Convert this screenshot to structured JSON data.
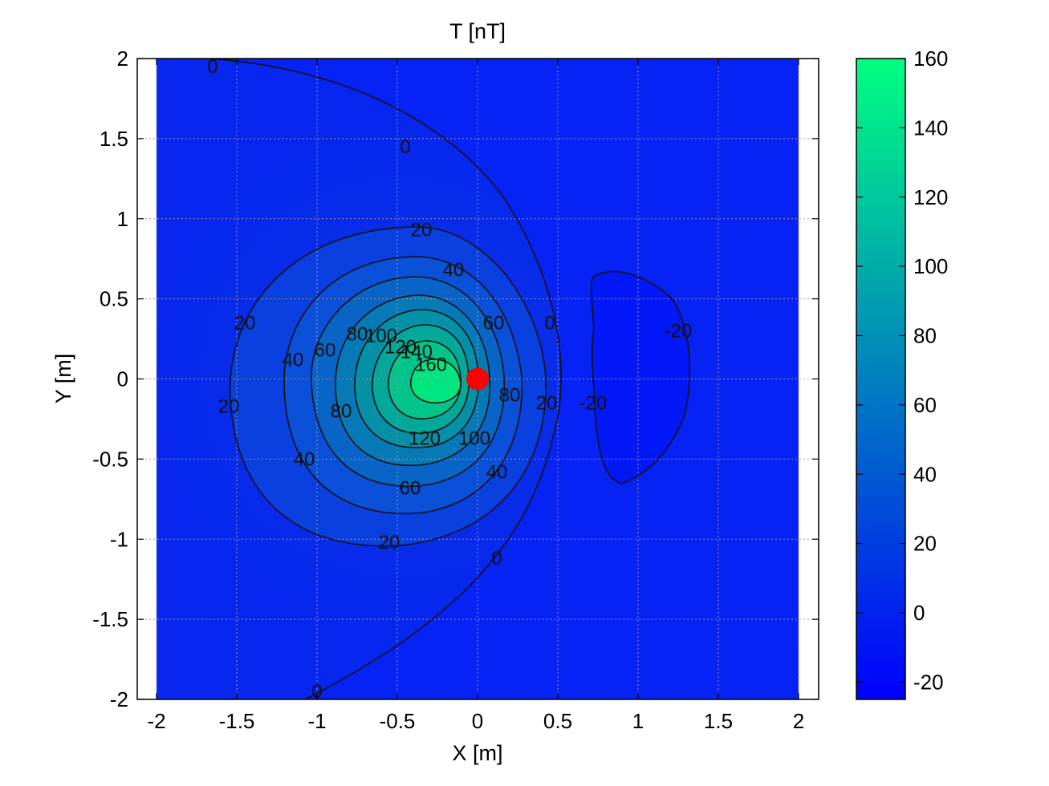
{
  "chart_data": {
    "type": "contour",
    "title": "T [nT]",
    "xlabel": "X [m]",
    "ylabel": "Y [m]",
    "xlim": [
      -2,
      2
    ],
    "ylim": [
      -2,
      2
    ],
    "xticks": [
      "-2",
      "-1.5",
      "-1",
      "-0.5",
      "0",
      "0.5",
      "1",
      "1.5",
      "2"
    ],
    "yticks": [
      "2",
      "1.5",
      "1",
      "0.5",
      "0",
      "-0.5",
      "-1",
      "-1.5",
      "-2"
    ],
    "grid": true,
    "colormap": {
      "low_color": "#0000ff",
      "high_color": "#00ff80"
    },
    "colorbar": {
      "range": [
        -25,
        160
      ],
      "ticks": [
        "160",
        "140",
        "120",
        "100",
        "80",
        "60",
        "40",
        "20",
        "0",
        "-20"
      ]
    },
    "peak": {
      "x": -0.3,
      "y": -0.05,
      "value": 160
    },
    "contour_levels": [
      -20,
      0,
      20,
      40,
      60,
      80,
      100,
      120,
      140,
      160
    ],
    "contour_labels": [
      {
        "text": "0",
        "x": -1.65,
        "y": 1.95
      },
      {
        "text": "0",
        "x": -0.45,
        "y": 1.45
      },
      {
        "text": "0",
        "x": 0.45,
        "y": 0.35
      },
      {
        "text": "0",
        "x": 0.12,
        "y": -1.12
      },
      {
        "text": "0",
        "x": -1.0,
        "y": -1.95
      },
      {
        "text": "20",
        "x": -0.35,
        "y": 0.93
      },
      {
        "text": "20",
        "x": -1.45,
        "y": 0.35
      },
      {
        "text": "20",
        "x": -1.55,
        "y": -0.17
      },
      {
        "text": "20",
        "x": -0.55,
        "y": -1.02
      },
      {
        "text": "20",
        "x": 0.43,
        "y": -0.15
      },
      {
        "text": "40",
        "x": -0.15,
        "y": 0.68
      },
      {
        "text": "40",
        "x": -1.15,
        "y": 0.12
      },
      {
        "text": "40",
        "x": -1.08,
        "y": -0.5
      },
      {
        "text": "40",
        "x": 0.12,
        "y": -0.58
      },
      {
        "text": "60",
        "x": 0.1,
        "y": 0.35
      },
      {
        "text": "60",
        "x": -0.95,
        "y": 0.18
      },
      {
        "text": "60",
        "x": -0.42,
        "y": -0.68
      },
      {
        "text": "80",
        "x": -0.75,
        "y": 0.28
      },
      {
        "text": "80",
        "x": -0.85,
        "y": -0.2
      },
      {
        "text": "80",
        "x": 0.2,
        "y": -0.1
      },
      {
        "text": "100",
        "x": -0.6,
        "y": 0.27
      },
      {
        "text": "100",
        "x": -0.02,
        "y": -0.37
      },
      {
        "text": "120",
        "x": -0.48,
        "y": 0.2
      },
      {
        "text": "120",
        "x": -0.33,
        "y": -0.37
      },
      {
        "text": "140",
        "x": -0.38,
        "y": 0.17
      },
      {
        "text": "160",
        "x": -0.29,
        "y": 0.09
      },
      {
        "text": "-20",
        "x": 0.72,
        "y": -0.15
      },
      {
        "text": "-20",
        "x": 1.25,
        "y": 0.3
      }
    ],
    "marker": {
      "x": 0.0,
      "y": 0.0,
      "color": "#ff0000"
    }
  }
}
